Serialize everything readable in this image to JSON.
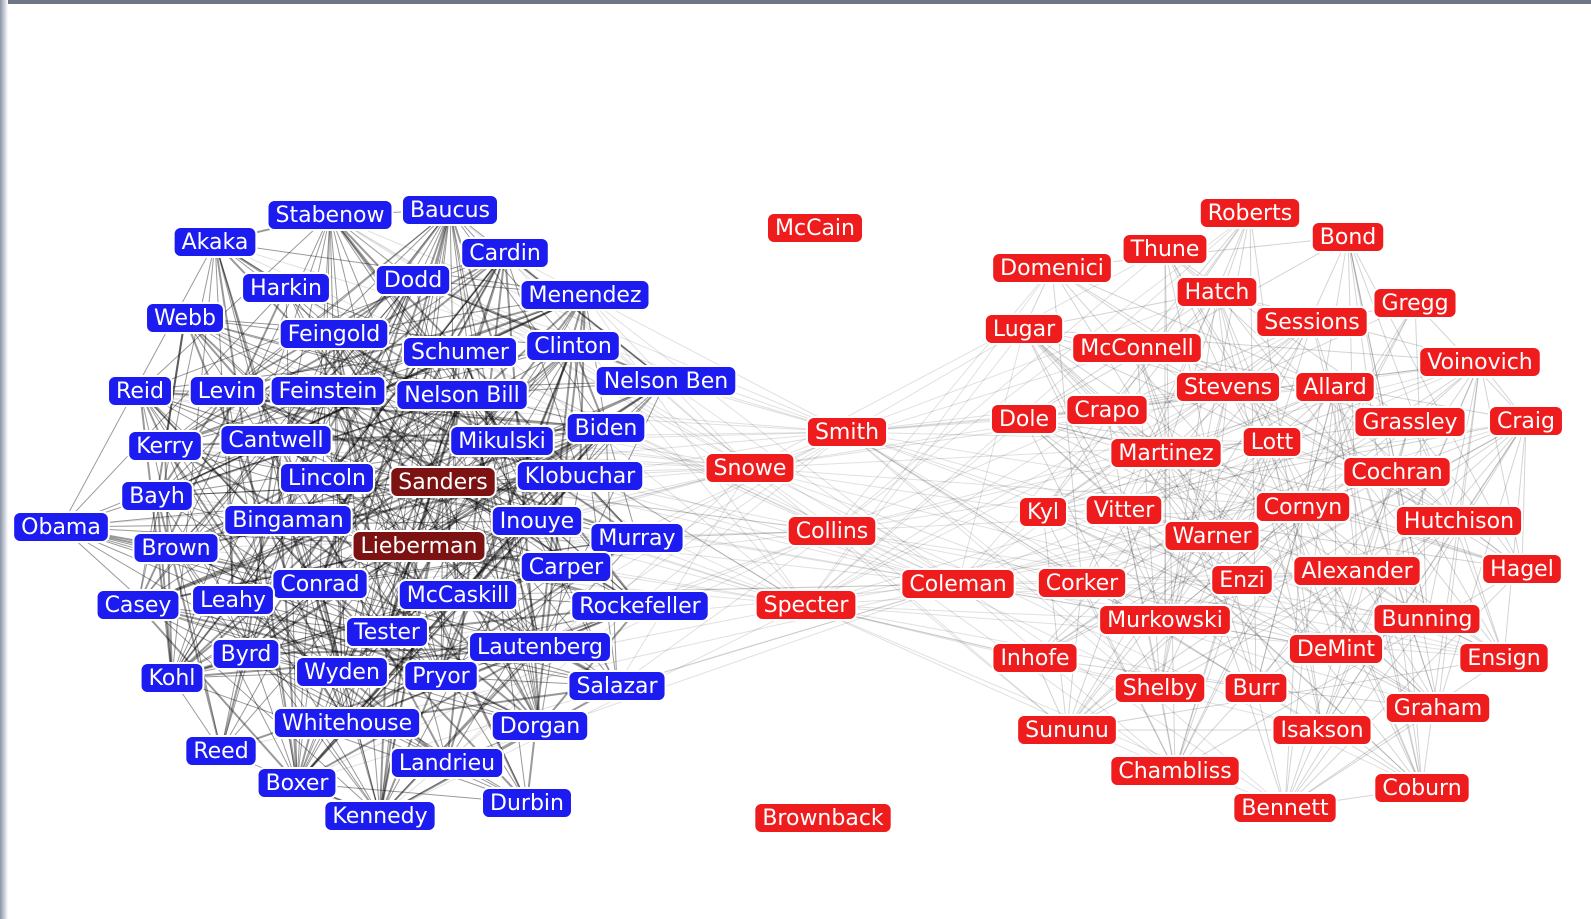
{
  "groups": [
    {
      "color": "#1c1cf0",
      "nodes": [
        "Stabenow",
        "Baucus",
        "Akaka",
        "Cardin",
        "Harkin",
        "Dodd",
        "Menendez",
        "Webb",
        "Feingold",
        "Schumer",
        "Clinton",
        "Reid",
        "Levin",
        "Feinstein",
        "Nelson Bill",
        "Nelson Ben",
        "Kerry",
        "Cantwell",
        "Mikulski",
        "Biden",
        "Lincoln",
        "Klobuchar",
        "Bayh",
        "Bingaman",
        "Inouye",
        "Obama",
        "Brown",
        "Murray",
        "Carper",
        "Conrad",
        "McCaskill",
        "Casey",
        "Leahy",
        "Rockefeller",
        "Tester",
        "Lautenberg",
        "Byrd",
        "Kohl",
        "Wyden",
        "Pryor",
        "Salazar",
        "Whitehouse",
        "Dorgan",
        "Reed",
        "Landrieu",
        "Boxer",
        "Durbin",
        "Kennedy"
      ]
    },
    {
      "color": "#7d1212",
      "nodes": [
        "Sanders",
        "Lieberman"
      ]
    },
    {
      "color": "#ee1c1c",
      "nodes": [
        "McCain",
        "Roberts",
        "Bond",
        "Thune",
        "Domenici",
        "Hatch",
        "Gregg",
        "Sessions",
        "Lugar",
        "McConnell",
        "Voinovich",
        "Stevens",
        "Allard",
        "Dole",
        "Crapo",
        "Grassley",
        "Craig",
        "Smith",
        "Lott",
        "Martinez",
        "Snowe",
        "Cochran",
        "Kyl",
        "Vitter",
        "Cornyn",
        "Hutchison",
        "Warner",
        "Collins",
        "Coleman",
        "Corker",
        "Enzi",
        "Alexander",
        "Hagel",
        "Specter",
        "Murkowski",
        "Bunning",
        "Inhofe",
        "DeMint",
        "Ensign",
        "Shelby",
        "Burr",
        "Graham",
        "Sununu",
        "Isakson",
        "Chambliss",
        "Coburn",
        "Bennett",
        "Brownback"
      ]
    }
  ]
}
